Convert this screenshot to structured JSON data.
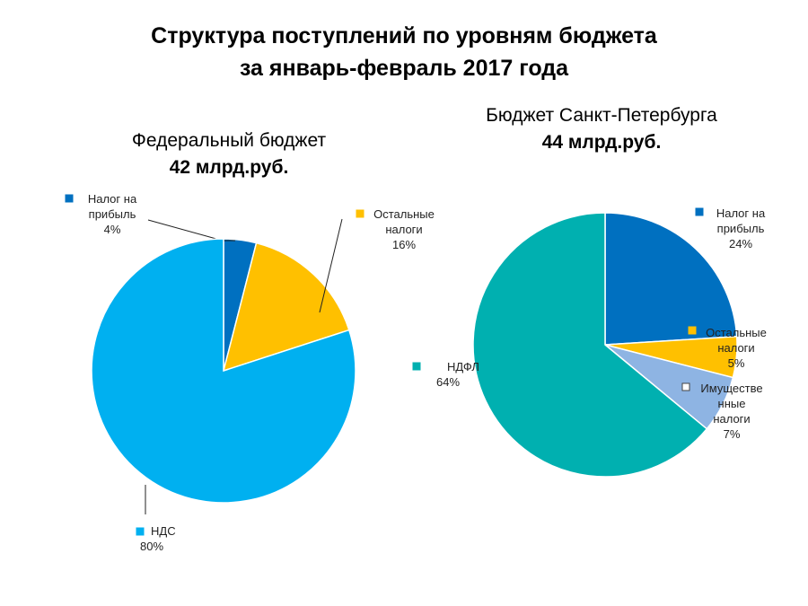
{
  "title": {
    "line1": "Структура поступлений по уровням бюджета",
    "line2": "за январь-февраль 2017 года"
  },
  "chart_data": [
    {
      "type": "pie",
      "title": "Федеральный бюджет",
      "subtitle": "42 млрд.руб.",
      "slices": [
        {
          "label": "Налог на прибыль",
          "value": 4,
          "color": "#0070C0"
        },
        {
          "label": "Остальные налоги",
          "value": 16,
          "color": "#FFC000"
        },
        {
          "label": "НДС",
          "value": 80,
          "color": "#00B0F0"
        }
      ]
    },
    {
      "type": "pie",
      "title": "Бюджет Санкт-Петербурга",
      "subtitle": "44 млрд.руб.",
      "slices": [
        {
          "label": "Налог на прибыль",
          "value": 24,
          "color": "#0070C0"
        },
        {
          "label": "Остальные налоги",
          "value": 5,
          "color": "#FFC000"
        },
        {
          "label": "Имущественные налоги",
          "value": 7,
          "color": "#8EB4E3"
        },
        {
          "label": "НДФЛ",
          "value": 64,
          "color": "#00B0B0"
        }
      ]
    }
  ]
}
